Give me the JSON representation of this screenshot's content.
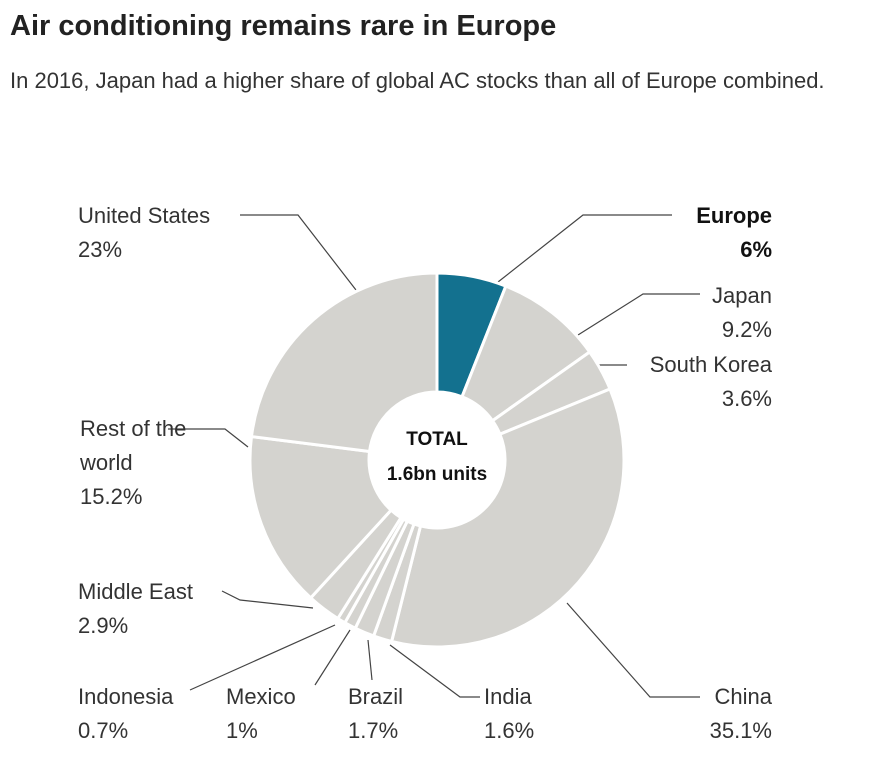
{
  "chart_data": {
    "type": "donut",
    "title": "Air conditioning remains rare in Europe",
    "subtitle": "In 2016, Japan had a higher share of global AC stocks than all of Europe combined.",
    "categories": [
      "Europe",
      "Japan",
      "South Korea",
      "China",
      "India",
      "Brazil",
      "Mexico",
      "Indonesia",
      "Middle East",
      "Rest of the world",
      "United States"
    ],
    "values": [
      6,
      9.2,
      3.6,
      35.1,
      1.6,
      1.7,
      1,
      0.7,
      2.9,
      15.2,
      23
    ],
    "value_labels": [
      "6%",
      "9.2%",
      "3.6%",
      "35.1%",
      "1.6%",
      "1.7%",
      "1%",
      "0.7%",
      "2.9%",
      "15.2%",
      "23%"
    ],
    "colors": [
      "#13718f",
      "#d4d3cf",
      "#d4d3cf",
      "#d4d3cf",
      "#d4d3cf",
      "#d4d3cf",
      "#d4d3cf",
      "#d4d3cf",
      "#d4d3cf",
      "#d4d3cf",
      "#d4d3cf"
    ],
    "highlight": "Europe",
    "annotations": [
      "TOTAL",
      "1.6bn units"
    ]
  }
}
